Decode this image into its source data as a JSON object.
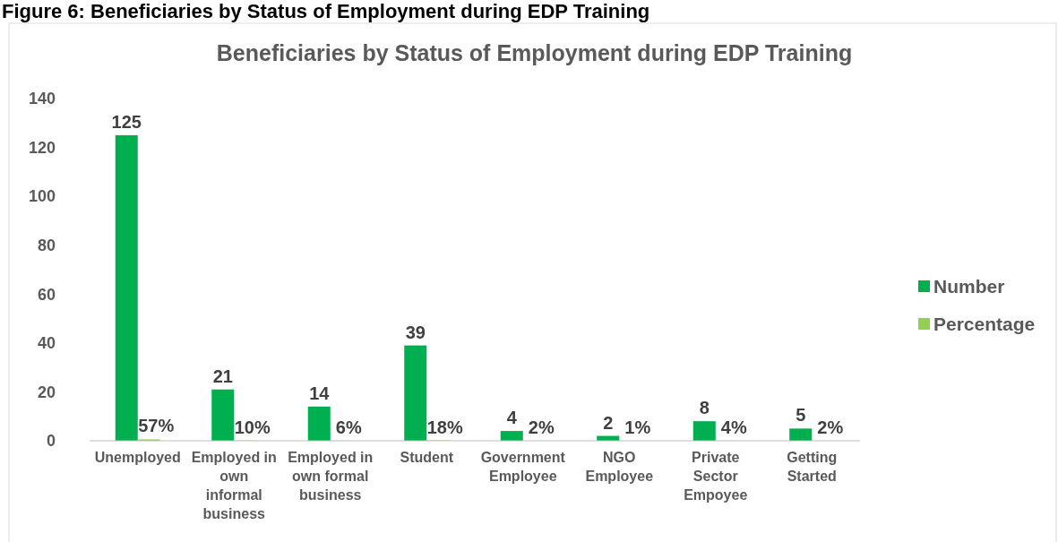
{
  "chart_data": {
    "type": "bar",
    "title": "Beneficiaries by Status of Employment during EDP Training",
    "annotations": [
      "Figure 6: Beneficiaries by Status of Employment during EDP Training"
    ],
    "categories": [
      "Unemployed",
      "Employed in own informal business",
      "Employed in own formal business",
      "Student",
      "Government Employee",
      "NGO Employee",
      "Private Sector Empoyee",
      "Getting Started"
    ],
    "series": [
      {
        "name": "Number",
        "color": "#00b050",
        "values": [
          125,
          21,
          14,
          39,
          4,
          2,
          8,
          5
        ],
        "value_labels": [
          "125",
          "21",
          "14",
          "39",
          "4",
          "2",
          "8",
          "5"
        ]
      },
      {
        "name": "Percentage",
        "color": "#92d050",
        "values": [
          0.57,
          0.1,
          0.06,
          0.18,
          0.02,
          0.01,
          0.04,
          0.02
        ],
        "value_labels": [
          "57%",
          "10%",
          "6%",
          "18%",
          "2%",
          "1%",
          "4%",
          "2%"
        ]
      }
    ],
    "ylim": [
      0,
      140
    ],
    "yticks": [
      0,
      20,
      40,
      60,
      80,
      100,
      120,
      140
    ],
    "grid": false,
    "legend": "right"
  }
}
